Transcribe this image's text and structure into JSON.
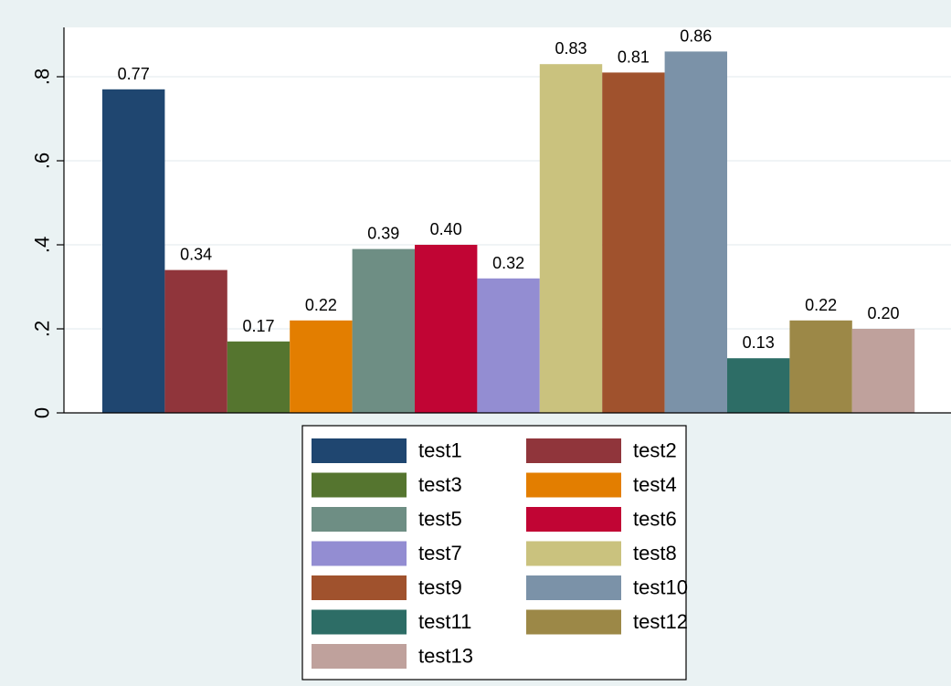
{
  "chart_data": {
    "type": "bar",
    "title": "",
    "xlabel": "",
    "ylabel": "",
    "ylim": [
      0,
      0.9
    ],
    "yticks": [
      {
        "value": 0,
        "label": "0"
      },
      {
        "value": 0.2,
        "label": ".2"
      },
      {
        "value": 0.4,
        "label": ".4"
      },
      {
        "value": 0.6,
        "label": ".6"
      },
      {
        "value": 0.8,
        "label": ".8"
      }
    ],
    "grid": true,
    "legend_position": "bottom",
    "legend_columns": 2,
    "series": [
      {
        "name": "test1",
        "value": 0.77,
        "label": "0.77",
        "color": "#1f4670"
      },
      {
        "name": "test2",
        "value": 0.34,
        "label": "0.34",
        "color": "#90353b"
      },
      {
        "name": "test3",
        "value": 0.17,
        "label": "0.17",
        "color": "#55752f"
      },
      {
        "name": "test4",
        "value": 0.22,
        "label": "0.22",
        "color": "#e37e00"
      },
      {
        "name": "test5",
        "value": 0.39,
        "label": "0.39",
        "color": "#6e8e84"
      },
      {
        "name": "test6",
        "value": 0.4,
        "label": "0.40",
        "color": "#c10534"
      },
      {
        "name": "test7",
        "value": 0.32,
        "label": "0.32",
        "color": "#938dd2"
      },
      {
        "name": "test8",
        "value": 0.83,
        "label": "0.83",
        "color": "#cac27e"
      },
      {
        "name": "test9",
        "value": 0.81,
        "label": "0.81",
        "color": "#a0522d"
      },
      {
        "name": "test10",
        "value": 0.86,
        "label": "0.86",
        "color": "#7b92a8"
      },
      {
        "name": "test11",
        "value": 0.13,
        "label": "0.13",
        "color": "#2d6d66"
      },
      {
        "name": "test12",
        "value": 0.22,
        "label": "0.22",
        "color": "#9c8847"
      },
      {
        "name": "test13",
        "value": 0.2,
        "label": "0.20",
        "color": "#bfa19c"
      }
    ]
  }
}
